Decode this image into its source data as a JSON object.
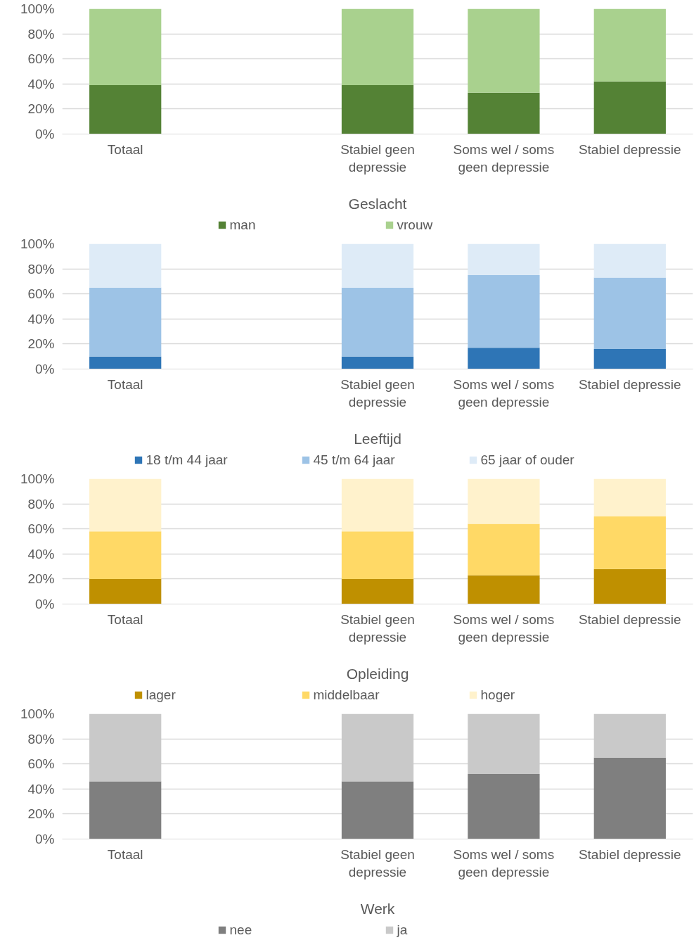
{
  "chart_data": [
    {
      "type": "bar",
      "stacked": true,
      "title": "Geslacht",
      "categories": [
        "Totaal",
        null,
        "Stabiel geen depressie",
        "Soms wel / soms geen depressie",
        "Stabiel depressie"
      ],
      "ylim": [
        0,
        100
      ],
      "yticks": [
        {
          "value": 0,
          "label": "0%"
        },
        {
          "value": 20,
          "label": "20%"
        },
        {
          "value": 40,
          "label": "40%"
        },
        {
          "value": 60,
          "label": "60%"
        },
        {
          "value": 80,
          "label": "80%"
        },
        {
          "value": 100,
          "label": "100%"
        }
      ],
      "grid": "y",
      "legend": "bottom",
      "series": [
        {
          "name": "man",
          "color": "#548235",
          "values": [
            39,
            null,
            39,
            33,
            42
          ]
        },
        {
          "name": "vrouw",
          "color": "#a9d18e",
          "values": [
            61,
            null,
            61,
            67,
            58
          ]
        }
      ]
    },
    {
      "type": "bar",
      "stacked": true,
      "title": "Leeftijd",
      "categories": [
        "Totaal",
        null,
        "Stabiel geen depressie",
        "Soms wel / soms geen depressie",
        "Stabiel depressie"
      ],
      "ylim": [
        0,
        100
      ],
      "yticks": [
        {
          "value": 0,
          "label": "0%"
        },
        {
          "value": 20,
          "label": "20%"
        },
        {
          "value": 40,
          "label": "40%"
        },
        {
          "value": 60,
          "label": "60%"
        },
        {
          "value": 80,
          "label": "80%"
        },
        {
          "value": 100,
          "label": "100%"
        }
      ],
      "grid": "y",
      "legend": "bottom",
      "series": [
        {
          "name": "18 t/m 44 jaar",
          "color": "#2e75b6",
          "values": [
            10,
            null,
            10,
            17,
            16
          ]
        },
        {
          "name": "45 t/m 64 jaar",
          "color": "#9dc3e6",
          "values": [
            55,
            null,
            55,
            58,
            57
          ]
        },
        {
          "name": "65 jaar of ouder",
          "color": "#deebf7",
          "values": [
            35,
            null,
            35,
            25,
            27
          ]
        }
      ]
    },
    {
      "type": "bar",
      "stacked": true,
      "title": "Opleiding",
      "categories": [
        "Totaal",
        null,
        "Stabiel geen depressie",
        "Soms wel / soms geen depressie",
        "Stabiel depressie"
      ],
      "ylim": [
        0,
        100
      ],
      "yticks": [
        {
          "value": 0,
          "label": "0%"
        },
        {
          "value": 20,
          "label": "20%"
        },
        {
          "value": 40,
          "label": "40%"
        },
        {
          "value": 60,
          "label": "60%"
        },
        {
          "value": 80,
          "label": "80%"
        },
        {
          "value": 100,
          "label": "100%"
        }
      ],
      "grid": "y",
      "legend": "bottom",
      "series": [
        {
          "name": "lager",
          "color": "#bf9000",
          "values": [
            20,
            null,
            20,
            23,
            28
          ]
        },
        {
          "name": "middelbaar",
          "color": "#ffd966",
          "values": [
            38,
            null,
            38,
            41,
            42
          ]
        },
        {
          "name": "hoger",
          "color": "#fff2cc",
          "values": [
            42,
            null,
            42,
            36,
            30
          ]
        }
      ]
    },
    {
      "type": "bar",
      "stacked": true,
      "title": "Werk",
      "categories": [
        "Totaal",
        null,
        "Stabiel geen depressie",
        "Soms wel / soms geen depressie",
        "Stabiel depressie"
      ],
      "ylim": [
        0,
        100
      ],
      "yticks": [
        {
          "value": 0,
          "label": "0%"
        },
        {
          "value": 20,
          "label": "20%"
        },
        {
          "value": 40,
          "label": "40%"
        },
        {
          "value": 60,
          "label": "60%"
        },
        {
          "value": 80,
          "label": "80%"
        },
        {
          "value": 100,
          "label": "100%"
        }
      ],
      "grid": "y",
      "legend": "bottom",
      "series": [
        {
          "name": "nee",
          "color": "#7f7f7f",
          "values": [
            46,
            null,
            46,
            52,
            65
          ]
        },
        {
          "name": "ja",
          "color": "#c9c9c9",
          "values": [
            54,
            null,
            54,
            48,
            35
          ]
        }
      ]
    }
  ]
}
